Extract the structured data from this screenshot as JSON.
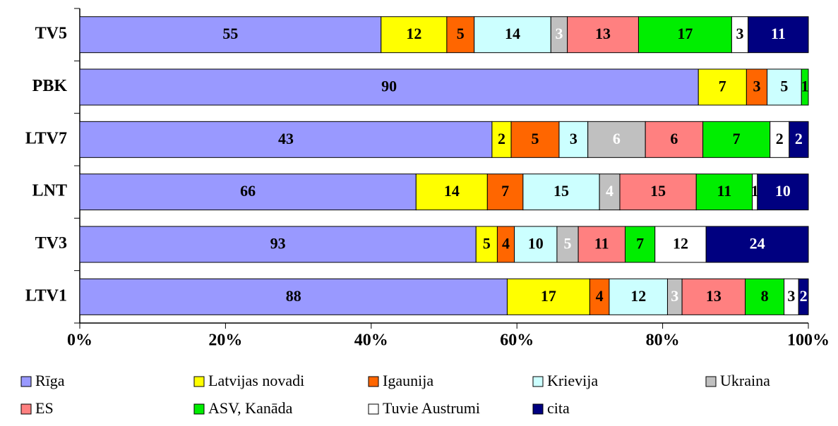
{
  "chart_data": {
    "type": "bar",
    "orientation": "horizontal",
    "stacking": "percent",
    "categories": [
      "TV5",
      "PBK",
      "LTV7",
      "LNT",
      "TV3",
      "LTV1"
    ],
    "series": [
      {
        "name": "Rīga",
        "color": "#9999ff",
        "label_color": "#000000",
        "values": [
          55,
          90,
          43,
          66,
          93,
          88
        ]
      },
      {
        "name": "Latvijas novadi",
        "color": "#ffff00",
        "label_color": "#000000",
        "values": [
          12,
          7,
          2,
          14,
          5,
          17
        ]
      },
      {
        "name": "Igaunija",
        "color": "#ff6600",
        "label_color": "#000000",
        "values": [
          5,
          3,
          5,
          7,
          4,
          4
        ]
      },
      {
        "name": "Krievija",
        "color": "#ccffff",
        "label_color": "#000000",
        "values": [
          14,
          5,
          3,
          15,
          10,
          12
        ]
      },
      {
        "name": "Ukraina",
        "color": "#c0c0c0",
        "label_color": "#ffffff",
        "values": [
          3,
          0,
          6,
          4,
          5,
          3
        ]
      },
      {
        "name": "ES",
        "color": "#ff8080",
        "label_color": "#000000",
        "values": [
          13,
          0,
          6,
          15,
          11,
          13
        ]
      },
      {
        "name": "ASV, Kanāda",
        "color": "#00ee00",
        "label_color": "#000000",
        "values": [
          17,
          1,
          7,
          11,
          7,
          8
        ]
      },
      {
        "name": "Tuvie Austrumi",
        "color": "#ffffff",
        "label_color": "#000000",
        "values": [
          3,
          0,
          2,
          1,
          12,
          3
        ]
      },
      {
        "name": "cita",
        "color": "#000080",
        "label_color": "#ffffff",
        "values": [
          11,
          0,
          2,
          10,
          24,
          2
        ]
      }
    ],
    "xlim": [
      0,
      100
    ],
    "xticks": [
      {
        "value": 0,
        "label": "0%"
      },
      {
        "value": 20,
        "label": "20%"
      },
      {
        "value": 40,
        "label": "40%"
      },
      {
        "value": 60,
        "label": "60%"
      },
      {
        "value": 80,
        "label": "80%"
      },
      {
        "value": 100,
        "label": "100%"
      }
    ],
    "legend": "bottom"
  }
}
